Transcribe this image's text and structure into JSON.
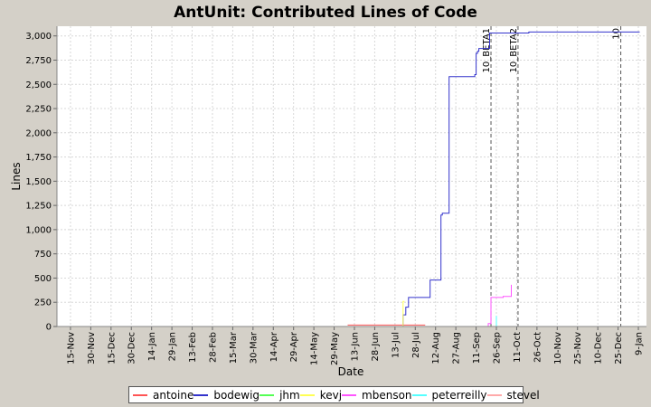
{
  "chart_data": {
    "type": "line",
    "title": "AntUnit: Contributed Lines of Code",
    "xlabel": "Date",
    "ylabel": "Lines",
    "ylim": [
      0,
      3100
    ],
    "yticks": [
      0,
      250,
      500,
      750,
      1000,
      1250,
      1500,
      1750,
      2000,
      2250,
      2500,
      2750,
      3000
    ],
    "ytick_labels": [
      "0",
      "250",
      "500",
      "750",
      "1,000",
      "1,250",
      "1,500",
      "1,750",
      "2,000",
      "2,250",
      "2,500",
      "2,750",
      "3,000"
    ],
    "xlim": [
      "2005-11-05",
      "2007-01-15"
    ],
    "xticks": [
      "2005-11-15",
      "2005-11-30",
      "2005-12-15",
      "2005-12-30",
      "2006-01-14",
      "2006-01-29",
      "2006-02-13",
      "2006-02-28",
      "2006-03-15",
      "2006-03-30",
      "2006-04-14",
      "2006-04-29",
      "2006-05-14",
      "2006-05-29",
      "2006-06-13",
      "2006-06-28",
      "2006-07-13",
      "2006-07-28",
      "2006-08-12",
      "2006-08-27",
      "2006-09-11",
      "2006-09-26",
      "2006-10-11",
      "2006-10-26",
      "2006-11-10",
      "2006-11-25",
      "2006-12-10",
      "2006-12-25",
      "2007-01-09"
    ],
    "xtick_labels": [
      "15-Nov",
      "30-Nov",
      "15-Dec",
      "30-Dec",
      "14-Jan",
      "29-Jan",
      "13-Feb",
      "28-Feb",
      "15-Mar",
      "30-Mar",
      "14-Apr",
      "29-Apr",
      "14-May",
      "29-May",
      "13-Jun",
      "28-Jun",
      "13-Jul",
      "28-Jul",
      "12-Aug",
      "27-Aug",
      "11-Sep",
      "26-Sep",
      "11-Oct",
      "26-Oct",
      "10-Nov",
      "25-Nov",
      "10-Dec",
      "25-Dec",
      "9-Jan"
    ],
    "grid": true,
    "legend_position": "bottom",
    "markers": [
      {
        "label": "10_BETA1",
        "x": "2006-09-22"
      },
      {
        "label": "10_BETA2",
        "x": "2006-10-12"
      },
      {
        "label": "10",
        "x": "2006-12-27"
      }
    ],
    "series": [
      {
        "name": "antoine",
        "color": "#ff5555",
        "step": true,
        "points": [
          [
            "2006-06-08",
            15
          ],
          [
            "2006-08-04",
            15
          ],
          [
            "2006-08-04",
            12
          ]
        ]
      },
      {
        "name": "bodewig",
        "color": "#3333cc",
        "step": true,
        "points": [
          [
            "2006-07-18",
            0
          ],
          [
            "2006-07-19",
            120
          ],
          [
            "2006-07-21",
            200
          ],
          [
            "2006-07-23",
            300
          ],
          [
            "2006-08-08",
            300
          ],
          [
            "2006-08-08",
            480
          ],
          [
            "2006-08-16",
            1150
          ],
          [
            "2006-08-17",
            1170
          ],
          [
            "2006-08-21",
            1170
          ],
          [
            "2006-08-22",
            2580
          ],
          [
            "2006-09-10",
            2580
          ],
          [
            "2006-09-10",
            2600
          ],
          [
            "2006-09-11",
            2820
          ],
          [
            "2006-09-12",
            2840
          ],
          [
            "2006-09-13",
            2870
          ],
          [
            "2006-09-20",
            2870
          ],
          [
            "2006-09-21",
            3030
          ],
          [
            "2006-10-19",
            3030
          ],
          [
            "2006-10-20",
            3040
          ],
          [
            "2007-01-10",
            3040
          ]
        ]
      },
      {
        "name": "jhm",
        "color": "#55ff55",
        "step": true,
        "points": [
          [
            "2006-07-17",
            0
          ],
          [
            "2006-07-18",
            0
          ]
        ]
      },
      {
        "name": "kevj",
        "color": "#ffff55",
        "step": true,
        "points": [
          [
            "2006-07-18",
            0
          ],
          [
            "2006-07-19",
            260
          ],
          [
            "2006-07-20",
            260
          ]
        ]
      },
      {
        "name": "mbenson",
        "color": "#ff55ff",
        "step": true,
        "points": [
          [
            "2006-09-19",
            0
          ],
          [
            "2006-09-20",
            30
          ],
          [
            "2006-09-22",
            30
          ],
          [
            "2006-09-22",
            300
          ],
          [
            "2006-10-01",
            300
          ],
          [
            "2006-10-01",
            310
          ],
          [
            "2006-10-07",
            310
          ],
          [
            "2006-10-07",
            430
          ]
        ]
      },
      {
        "name": "peterreilly",
        "color": "#55ffff",
        "step": true,
        "points": [
          [
            "2006-09-26",
            0
          ],
          [
            "2006-09-26",
            110
          ]
        ]
      },
      {
        "name": "stevel",
        "color": "#ffaaaa",
        "step": true,
        "points": [
          [
            "2006-09-21",
            0
          ],
          [
            "2006-09-22",
            0
          ]
        ]
      }
    ]
  }
}
